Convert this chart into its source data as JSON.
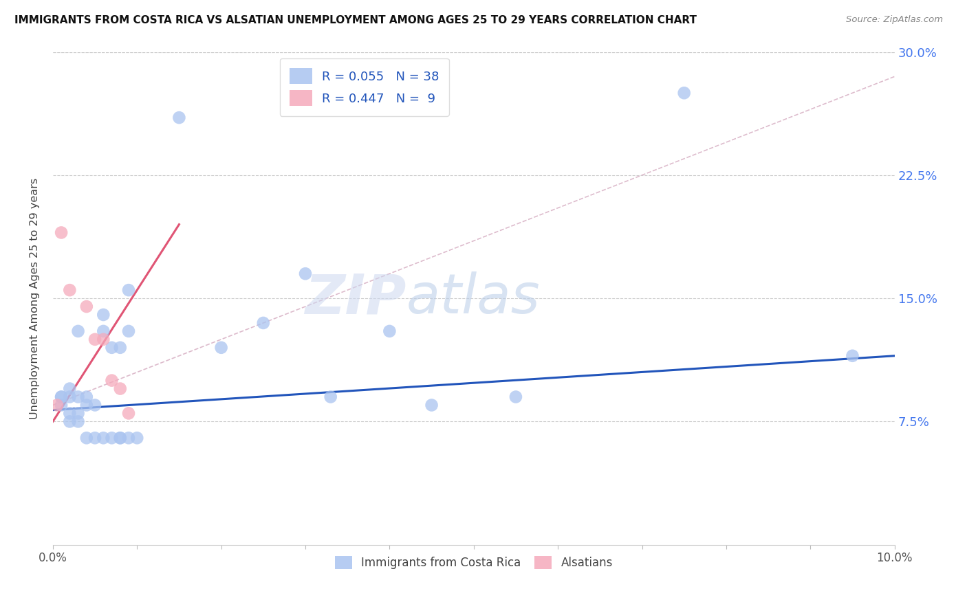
{
  "title": "IMMIGRANTS FROM COSTA RICA VS ALSATIAN UNEMPLOYMENT AMONG AGES 25 TO 29 YEARS CORRELATION CHART",
  "source": "Source: ZipAtlas.com",
  "ylabel": "Unemployment Among Ages 25 to 29 years",
  "xlim": [
    0.0,
    0.1
  ],
  "ylim": [
    0.0,
    0.3
  ],
  "xtick_positions": [
    0.0,
    0.01,
    0.02,
    0.03,
    0.04,
    0.05,
    0.06,
    0.07,
    0.08,
    0.09,
    0.1
  ],
  "xtick_labels": [
    "0.0%",
    "",
    "",
    "",
    "",
    "",
    "",
    "",
    "",
    "",
    "10.0%"
  ],
  "ytick_positions": [
    0.0,
    0.075,
    0.15,
    0.225,
    0.3
  ],
  "ytick_labels_right": [
    "",
    "7.5%",
    "15.0%",
    "22.5%",
    "30.0%"
  ],
  "grid_yticks": [
    0.075,
    0.15,
    0.225,
    0.3
  ],
  "blue_color": "#aac4f0",
  "pink_color": "#f5aabb",
  "blue_line_color": "#2255bb",
  "pink_line_color": "#e05575",
  "diag_line_color": "#ddbbcc",
  "legend_r_blue": "R = 0.055",
  "legend_n_blue": "N = 38",
  "legend_r_pink": "R = 0.447",
  "legend_n_pink": "N =  9",
  "watermark_zip": "ZIP",
  "watermark_atlas": "atlas",
  "blue_x": [
    0.001,
    0.001,
    0.001,
    0.002,
    0.002,
    0.002,
    0.002,
    0.003,
    0.003,
    0.003,
    0.003,
    0.004,
    0.004,
    0.004,
    0.005,
    0.005,
    0.006,
    0.006,
    0.006,
    0.007,
    0.007,
    0.008,
    0.008,
    0.008,
    0.009,
    0.009,
    0.009,
    0.01,
    0.015,
    0.02,
    0.025,
    0.03,
    0.033,
    0.04,
    0.045,
    0.055,
    0.075,
    0.095
  ],
  "blue_y": [
    0.085,
    0.09,
    0.09,
    0.075,
    0.08,
    0.09,
    0.095,
    0.075,
    0.08,
    0.09,
    0.13,
    0.065,
    0.085,
    0.09,
    0.065,
    0.085,
    0.065,
    0.13,
    0.14,
    0.065,
    0.12,
    0.065,
    0.065,
    0.12,
    0.065,
    0.13,
    0.155,
    0.065,
    0.26,
    0.12,
    0.135,
    0.165,
    0.09,
    0.13,
    0.085,
    0.09,
    0.275,
    0.115
  ],
  "pink_x": [
    0.0005,
    0.001,
    0.002,
    0.004,
    0.005,
    0.006,
    0.007,
    0.008,
    0.009
  ],
  "pink_y": [
    0.085,
    0.19,
    0.155,
    0.145,
    0.125,
    0.125,
    0.1,
    0.095,
    0.08
  ],
  "blue_trendline_x": [
    0.0,
    0.1
  ],
  "blue_trendline_y": [
    0.082,
    0.115
  ],
  "pink_trendline_x": [
    0.0,
    0.015
  ],
  "pink_trendline_y": [
    0.075,
    0.195
  ],
  "diag_line_x": [
    0.0,
    0.1
  ],
  "diag_line_y": [
    0.085,
    0.285
  ]
}
